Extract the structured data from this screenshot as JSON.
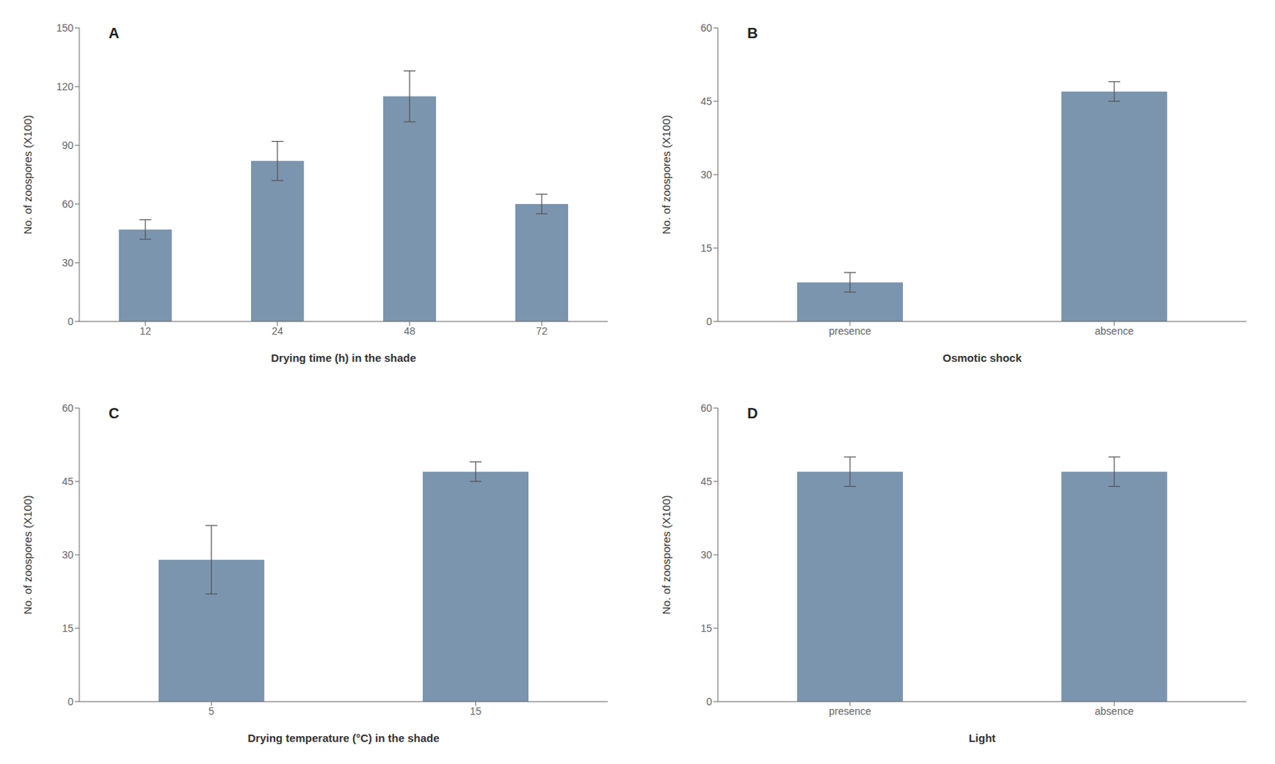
{
  "chart_data": [
    {
      "type": "bar",
      "annotation": "A",
      "categories": [
        "12",
        "24",
        "48",
        "72"
      ],
      "values": [
        47,
        82,
        115,
        60
      ],
      "errors": [
        5,
        10,
        13,
        5
      ],
      "ylim": [
        0,
        150
      ],
      "yticks": [
        0,
        30,
        60,
        90,
        120,
        150
      ],
      "xlabel": "Drying time (h) in the shade",
      "ylabel": "No. of zoospores (X100)",
      "color": "#7b95ae"
    },
    {
      "type": "bar",
      "annotation": "B",
      "categories": [
        "presence",
        "absence"
      ],
      "values": [
        8,
        47
      ],
      "errors": [
        2,
        2
      ],
      "ylim": [
        0,
        60
      ],
      "yticks": [
        0,
        15,
        30,
        45,
        60
      ],
      "xlabel": "Osmotic shock",
      "ylabel": "No. of zoospores (X100)",
      "color": "#7b95ae"
    },
    {
      "type": "bar",
      "annotation": "C",
      "categories": [
        "5",
        "15"
      ],
      "values": [
        29,
        47
      ],
      "errors": [
        7,
        2
      ],
      "ylim": [
        0,
        60
      ],
      "yticks": [
        0,
        15,
        30,
        45,
        60
      ],
      "xlabel": "Drying temperature (°C) in the shade",
      "ylabel": "No. of zoospores (X100)",
      "color": "#7b95ae"
    },
    {
      "type": "bar",
      "annotation": "D",
      "categories": [
        "presence",
        "absence"
      ],
      "values": [
        47,
        47
      ],
      "errors": [
        3,
        3
      ],
      "ylim": [
        0,
        60
      ],
      "yticks": [
        0,
        15,
        30,
        45,
        60
      ],
      "xlabel": "Light",
      "ylabel": "No. of zoospores (X100)",
      "color": "#7b95ae"
    }
  ]
}
